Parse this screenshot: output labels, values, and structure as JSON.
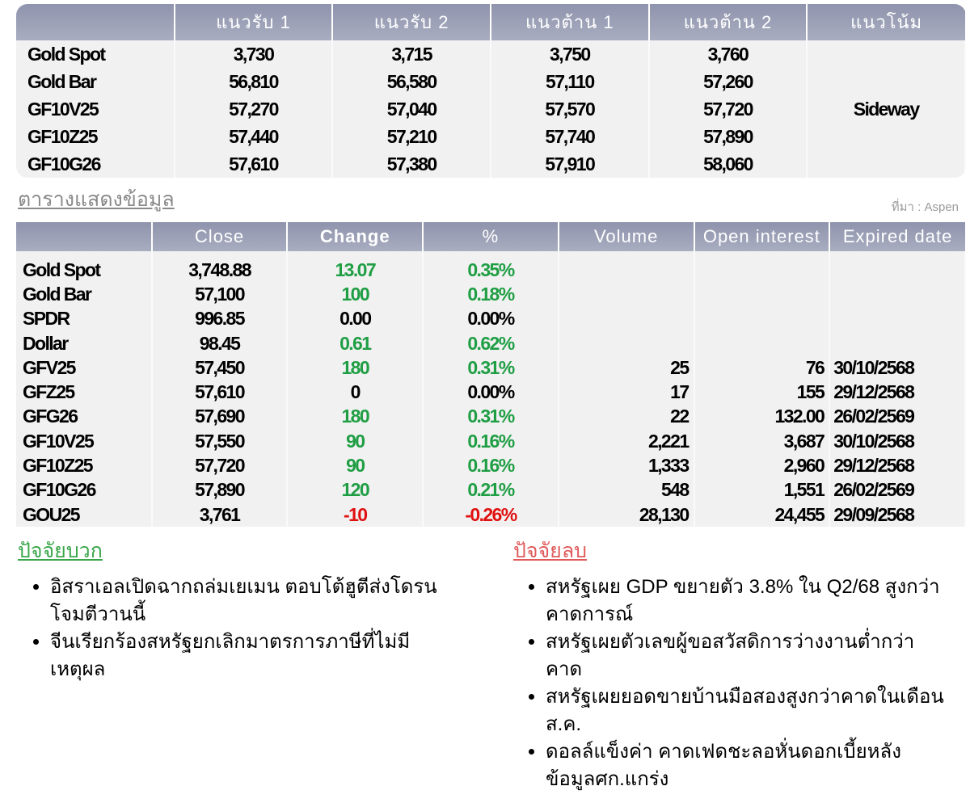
{
  "levels_table": {
    "headers": [
      "",
      "แนวรับ 1",
      "แนวรับ 2",
      "แนวต้าน 1",
      "แนวต้าน 2",
      "แนวโน้ม"
    ],
    "rows": [
      {
        "name": "Gold Spot",
        "s1": "3,730",
        "s2": "3,715",
        "r1": "3,750",
        "r2": "3,760"
      },
      {
        "name": "Gold Bar",
        "s1": "56,810",
        "s2": "56,580",
        "r1": "57,110",
        "r2": "57,260"
      },
      {
        "name": "GF10V25",
        "s1": "57,270",
        "s2": "57,040",
        "r1": "57,570",
        "r2": "57,720"
      },
      {
        "name": "GF10Z25",
        "s1": "57,440",
        "s2": "57,210",
        "r1": "57,740",
        "r2": "57,890"
      },
      {
        "name": "GF10G26",
        "s1": "57,610",
        "s2": "57,380",
        "r1": "57,910",
        "r2": "58,060"
      }
    ],
    "trend": "Sideway"
  },
  "data_title": "ตารางแสดงข้อมูล",
  "source": "ที่มา : Aspen",
  "data_table": {
    "headers": [
      "",
      "Close",
      "Change",
      "%",
      "Volume",
      "Open interest",
      "Expired date"
    ],
    "rows": [
      {
        "name": "Gold Spot",
        "close": "3,748.88",
        "change": "13.07",
        "pct": "0.35%",
        "dir": "up",
        "volume": "",
        "oi": "",
        "expiry": ""
      },
      {
        "name": "Gold Bar",
        "close": "57,100",
        "change": "100",
        "pct": "0.18%",
        "dir": "up",
        "volume": "",
        "oi": "",
        "expiry": ""
      },
      {
        "name": "SPDR",
        "close": "996.85",
        "change": "0.00",
        "pct": "0.00%",
        "dir": "flat",
        "volume": "",
        "oi": "",
        "expiry": ""
      },
      {
        "name": "Dollar",
        "close": "98.45",
        "change": "0.61",
        "pct": "0.62%",
        "dir": "up",
        "volume": "",
        "oi": "",
        "expiry": ""
      },
      {
        "name": "GFV25",
        "close": "57,450",
        "change": "180",
        "pct": "0.31%",
        "dir": "up",
        "volume": "25",
        "oi": "76",
        "expiry": "30/10/2568"
      },
      {
        "name": "GFZ25",
        "close": "57,610",
        "change": "0",
        "pct": "0.00%",
        "dir": "flat",
        "volume": "17",
        "oi": "155",
        "expiry": "29/12/2568"
      },
      {
        "name": "GFG26",
        "close": "57,690",
        "change": "180",
        "pct": "0.31%",
        "dir": "up",
        "volume": "22",
        "oi": "132.00",
        "expiry": "26/02/2569"
      },
      {
        "name": "GF10V25",
        "close": "57,550",
        "change": "90",
        "pct": "0.16%",
        "dir": "up",
        "volume": "2,221",
        "oi": "3,687",
        "expiry": "30/10/2568"
      },
      {
        "name": "GF10Z25",
        "close": "57,720",
        "change": "90",
        "pct": "0.16%",
        "dir": "up",
        "volume": "1,333",
        "oi": "2,960",
        "expiry": "29/12/2568"
      },
      {
        "name": "GF10G26",
        "close": "57,890",
        "change": "120",
        "pct": "0.21%",
        "dir": "up",
        "volume": "548",
        "oi": "1,551",
        "expiry": "26/02/2569"
      },
      {
        "name": "GOU25",
        "close": "3,761",
        "change": "-10",
        "pct": "-0.26%",
        "dir": "down",
        "volume": "28,130",
        "oi": "24,455",
        "expiry": "29/09/2568"
      }
    ]
  },
  "colors": {
    "up": "#1f9e44",
    "down": "#e01010",
    "header": "#9a9eb5",
    "positive_title": "#3aa64a",
    "negative_title": "#e05a5a"
  },
  "positive": {
    "title": "ปัจจัยบวก",
    "items": [
      "อิสราเอลเปิดฉากถล่มเยเมน ตอบโต้ฮูตีส่งโดรนโจมตีวานนี้",
      "จีนเรียกร้องสหรัฐยกเลิกมาตรการภาษีที่ไม่มีเหตุผล"
    ]
  },
  "negative": {
    "title": "ปัจจัยลบ",
    "items": [
      "สหรัฐเผย GDP ขยายตัว 3.8% ใน Q2/68 สูงกว่าคาดการณ์",
      "สหรัฐเผยตัวเลขผู้ขอสวัสดิการว่างงานต่ำกว่าคาด",
      "สหรัฐเผยยอดขายบ้านมือสองสูงกว่าคาดในเดือนส.ค.",
      "ดอลล์แข็งค่า คาดเฟดชะลอหั่นดอกเบี้ยหลังข้อมูลศก.แกร่ง"
    ]
  }
}
